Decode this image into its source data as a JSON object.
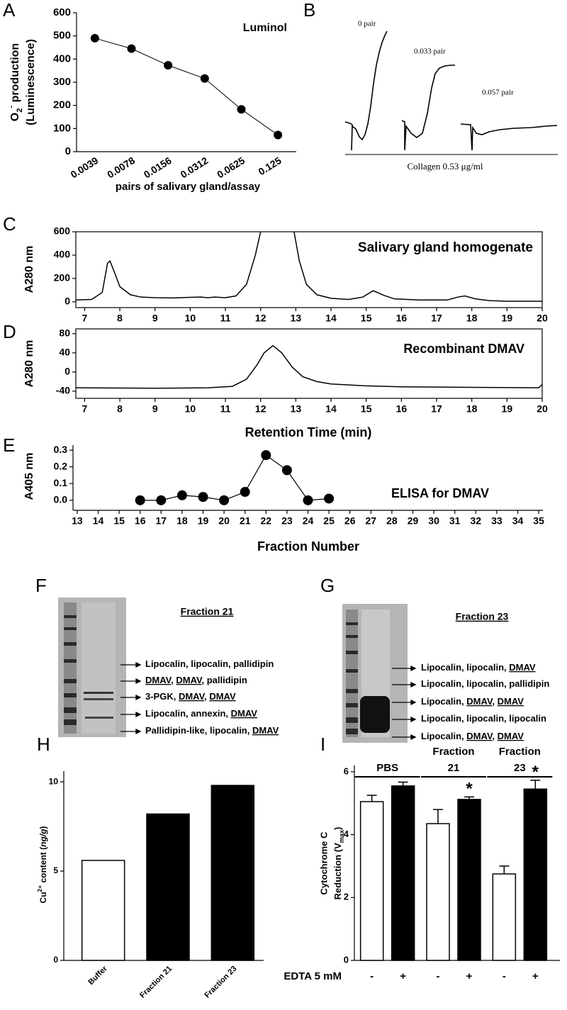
{
  "panel_labels": [
    "A",
    "B",
    "C",
    "D",
    "E",
    "F",
    "G",
    "H",
    "I"
  ],
  "chart_data": [
    {
      "type": "line",
      "markers": true,
      "color": "#000000",
      "categories": [
        "0.0039",
        "0.0078",
        "0.0156",
        "0.0312",
        "0.0625",
        "0.125"
      ],
      "values": [
        490,
        445,
        373,
        316,
        183,
        72
      ],
      "ylim": [
        0,
        600
      ],
      "yticks": [
        0,
        100,
        200,
        300,
        400,
        500,
        600
      ],
      "ylabel": [
        [
          {
            "text": "O"
          },
          {
            "text": "2",
            "sub": true
          },
          {
            "text": "-",
            "sup": true
          },
          {
            "text": " production"
          }
        ],
        "(Luminescence)"
      ],
      "xlabel": "pairs of salivary gland/assay",
      "annotation": "Luminol",
      "box": false
    },
    {
      "type": "line",
      "markers": false,
      "color": "#000000",
      "x": [
        6.75,
        7.2,
        7.5,
        7.65,
        7.72,
        7.85,
        8.0,
        8.3,
        8.6,
        9,
        9.5,
        10,
        10.3,
        10.5,
        10.7,
        11,
        11.3,
        11.6,
        11.85,
        12.0,
        12.5,
        12.95,
        13.1,
        13.3,
        13.6,
        14,
        14.5,
        14.9,
        15.2,
        15.5,
        15.8,
        16.5,
        17.3,
        17.6,
        17.8,
        18.1,
        18.5,
        19,
        20
      ],
      "values": [
        15,
        20,
        80,
        330,
        350,
        250,
        130,
        60,
        40,
        35,
        33,
        38,
        40,
        35,
        40,
        35,
        50,
        150,
        400,
        600,
        null,
        600,
        350,
        150,
        60,
        30,
        20,
        40,
        95,
        55,
        25,
        15,
        15,
        40,
        50,
        25,
        10,
        5,
        5
      ],
      "xlim": [
        6.75,
        20
      ],
      "ylim": [
        -50,
        600
      ],
      "xticks": [
        7,
        8,
        9,
        10,
        11,
        12,
        13,
        14,
        15,
        16,
        17,
        18,
        19,
        20
      ],
      "yticks": [
        0,
        200,
        400,
        600
      ],
      "ylabel": [
        "A280 nm"
      ],
      "annotation": "Salivary gland homogenate",
      "box": true
    },
    {
      "type": "line",
      "markers": false,
      "color": "#000000",
      "x": [
        6.75,
        9,
        10.5,
        11.2,
        11.6,
        11.9,
        12.1,
        12.35,
        12.6,
        12.9,
        13.2,
        13.6,
        14,
        15,
        16,
        18,
        19.9,
        20
      ],
      "values": [
        -33,
        -34,
        -33,
        -30,
        -15,
        15,
        40,
        55,
        40,
        10,
        -10,
        -20,
        -25,
        -29,
        -31,
        -32,
        -33,
        -26
      ],
      "xlim": [
        6.75,
        20
      ],
      "ylim": [
        -55,
        90
      ],
      "xticks": [
        7,
        8,
        9,
        10,
        11,
        12,
        13,
        14,
        15,
        16,
        17,
        18,
        19,
        20
      ],
      "yticks": [
        -40,
        0,
        40,
        80
      ],
      "ylabel": [
        "A280 nm"
      ],
      "xlabel": "Retention Time (min)",
      "annotation": "Recombinant DMAV",
      "box": true
    },
    {
      "type": "line",
      "markers": true,
      "color": "#000000",
      "x": [
        16,
        17,
        18,
        19,
        20,
        21,
        22,
        23,
        24,
        25
      ],
      "values": [
        0.0,
        0.0,
        0.03,
        0.02,
        0.0,
        0.05,
        0.27,
        0.18,
        0.0,
        0.01
      ],
      "xlim": [
        12.8,
        35.2
      ],
      "ylim": [
        -0.06,
        0.33
      ],
      "xticks": [
        13,
        14,
        15,
        16,
        17,
        18,
        19,
        20,
        21,
        22,
        23,
        24,
        25,
        26,
        27,
        28,
        29,
        30,
        31,
        32,
        33,
        34,
        35
      ],
      "yticks": [
        {
          "value": 0,
          "label": "0.0"
        },
        0.1,
        0.2,
        0.3
      ],
      "ylabel": [
        "A405 nm"
      ],
      "xlabel": "Fraction Number",
      "annotation": "ELISA for DMAV",
      "box": false
    },
    {
      "type": "bar",
      "categories": [
        "Buffer",
        "Fraction 21",
        "Fraction 23"
      ],
      "values": [
        5.6,
        8.2,
        9.8
      ],
      "colors": [
        "#ffffff",
        "#000000",
        "#000000"
      ],
      "ylim": [
        0,
        10.6
      ],
      "yticks": [
        0,
        5,
        10
      ],
      "ylabel": [
        [
          {
            "text": "Cu"
          },
          {
            "text": "2+",
            "sup": true
          },
          {
            "text": " content ("
          },
          {
            "text": "ng/g",
            "italic": true
          },
          {
            "text": ")"
          }
        ]
      ]
    },
    {
      "type": "bar",
      "categories": [
        "-",
        "+",
        "-",
        "+",
        "-",
        "+"
      ],
      "values": [
        5.05,
        5.55,
        4.35,
        5.12,
        2.75,
        5.45
      ],
      "errors": [
        0.2,
        0.12,
        0.45,
        0.08,
        0.25,
        0.28
      ],
      "colors": [
        "#ffffff",
        "#000000",
        "#ffffff",
        "#000000",
        "#ffffff",
        "#000000"
      ],
      "groups": [
        [
          "PBS"
        ],
        [
          "Fraction",
          "21"
        ],
        [
          "Fraction",
          "23"
        ]
      ],
      "value_annotations": [
        null,
        null,
        null,
        "*",
        null,
        "*"
      ],
      "row_label": "EDTA 5 mM",
      "ylim": [
        0,
        6.2
      ],
      "yticks": [
        0,
        2,
        4,
        6
      ],
      "ylabel": [
        "Cytochrome C",
        [
          {
            "text": "Reduction (V"
          },
          {
            "text": "max",
            "sub": true
          },
          {
            "text": ")"
          }
        ]
      ]
    }
  ],
  "aggregation": {
    "traces": [
      "0 pair",
      "0.033 pair",
      "0.057 pair"
    ],
    "caption": "Collagen 0.53 μg/ml"
  },
  "gels": [
    {
      "title": "Fraction 21",
      "labels": [
        [
          {
            "text": "Lipocalin, lipocalin, pallidipin"
          }
        ],
        [
          {
            "text": "DMAV",
            "underline": true
          },
          {
            "text": ", "
          },
          {
            "text": "DMAV",
            "underline": true
          },
          {
            "text": ", pallidipin"
          }
        ],
        [
          {
            "text": "3-PGK, "
          },
          {
            "text": "DMAV",
            "underline": true
          },
          {
            "text": ", "
          },
          {
            "text": "DMAV",
            "underline": true
          }
        ],
        [
          {
            "text": "Lipocalin, annexin, "
          },
          {
            "text": "DMAV",
            "underline": true
          }
        ],
        [
          {
            "text": "Pallidipin-like, lipocalin, "
          },
          {
            "text": "DMAV",
            "underline": true
          }
        ]
      ]
    },
    {
      "title": "Fraction 23",
      "labels": [
        [
          {
            "text": "Lipocalin, lipocalin, "
          },
          {
            "text": "DMAV",
            "underline": true
          }
        ],
        [
          {
            "text": "Lipocalin, lipocalin, pallidipin"
          }
        ],
        [
          {
            "text": "Lipocalin, "
          },
          {
            "text": "DMAV",
            "underline": true
          },
          {
            "text": ", "
          },
          {
            "text": "DMAV",
            "underline": true
          }
        ],
        [
          {
            "text": "Lipocalin, lipocalin, lipocalin"
          }
        ],
        [
          {
            "text": "Lipocalin, "
          },
          {
            "text": "DMAV",
            "underline": true
          },
          {
            "text": ", "
          },
          {
            "text": "DMAV",
            "underline": true
          }
        ]
      ]
    }
  ]
}
